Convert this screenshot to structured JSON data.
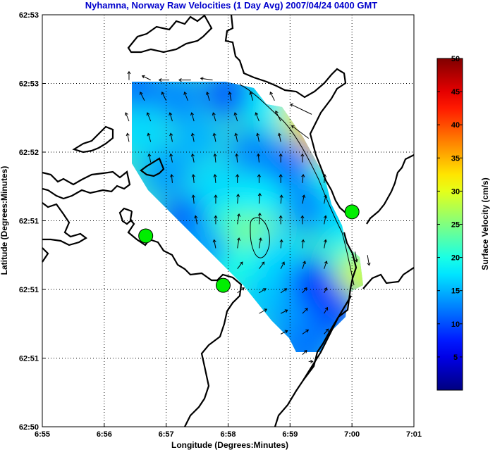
{
  "chart_data": {
    "type": "heatmap",
    "title": "Nyhamna, Norway Raw Velocities (1 Day Avg) 2007/04/24 0400 GMT",
    "xlabel": "Longitude (Degrees:Minutes)",
    "ylabel": "Latitude (Degrees:Minutes)",
    "x_ticks": [
      "6:55",
      "6:56",
      "6:57",
      "6:58",
      "6:59",
      "7:00",
      "7:01"
    ],
    "y_ticks": [
      "62:53",
      "62:53",
      "62:52",
      "62:51",
      "62:51",
      "62:51",
      "62:50"
    ],
    "xlim": [
      0,
      6
    ],
    "ylim": [
      0,
      6
    ],
    "grid": true,
    "colorbar": {
      "label": "Surface Velocity (cm/s)",
      "ticks": [
        5,
        10,
        15,
        20,
        25,
        30,
        35,
        40,
        45,
        50
      ],
      "range": [
        0,
        50
      ],
      "colormap": "jet"
    },
    "stations": [
      {
        "x": 1.67,
        "y": 2.78
      },
      {
        "x": 2.92,
        "y": 2.06
      },
      {
        "x": 5.0,
        "y": 3.13
      }
    ],
    "speed_field": [
      {
        "x": 1.5,
        "y": 4.95,
        "speed": 12
      },
      {
        "x": 2.2,
        "y": 4.8,
        "speed": 13
      },
      {
        "x": 3.0,
        "y": 4.85,
        "speed": 11
      },
      {
        "x": 3.7,
        "y": 4.7,
        "speed": 18
      },
      {
        "x": 4.25,
        "y": 4.55,
        "speed": 32
      },
      {
        "x": 4.45,
        "y": 4.2,
        "speed": 34
      },
      {
        "x": 1.6,
        "y": 4.3,
        "speed": 17
      },
      {
        "x": 2.5,
        "y": 4.2,
        "speed": 15
      },
      {
        "x": 3.4,
        "y": 4.0,
        "speed": 13
      },
      {
        "x": 4.0,
        "y": 3.8,
        "speed": 12
      },
      {
        "x": 4.7,
        "y": 3.6,
        "speed": 20
      },
      {
        "x": 2.0,
        "y": 3.7,
        "speed": 14
      },
      {
        "x": 2.8,
        "y": 3.5,
        "speed": 17
      },
      {
        "x": 3.5,
        "y": 3.3,
        "speed": 18
      },
      {
        "x": 4.3,
        "y": 3.2,
        "speed": 13
      },
      {
        "x": 4.9,
        "y": 3.0,
        "speed": 17
      },
      {
        "x": 2.3,
        "y": 3.0,
        "speed": 11
      },
      {
        "x": 3.0,
        "y": 2.9,
        "speed": 21
      },
      {
        "x": 3.4,
        "y": 2.75,
        "speed": 25
      },
      {
        "x": 3.1,
        "y": 2.35,
        "speed": 20
      },
      {
        "x": 2.6,
        "y": 2.6,
        "speed": 14
      },
      {
        "x": 3.8,
        "y": 2.5,
        "speed": 17
      },
      {
        "x": 4.3,
        "y": 2.1,
        "speed": 11
      },
      {
        "x": 4.55,
        "y": 1.9,
        "speed": 8
      },
      {
        "x": 5.05,
        "y": 2.5,
        "speed": 20
      },
      {
        "x": 5.15,
        "y": 2.2,
        "speed": 29
      },
      {
        "x": 3.6,
        "y": 1.9,
        "speed": 16
      },
      {
        "x": 4.0,
        "y": 1.5,
        "speed": 14
      },
      {
        "x": 4.4,
        "y": 1.3,
        "speed": 13
      },
      {
        "x": 4.7,
        "y": 1.7,
        "speed": 10
      },
      {
        "x": 4.2,
        "y": 1.1,
        "speed": 12
      }
    ],
    "vectors": [
      {
        "x": 1.4,
        "y": 5.05,
        "u": 0,
        "v": 0.1
      },
      {
        "x": 1.75,
        "y": 5.05,
        "u": -0.1,
        "v": 0.05
      },
      {
        "x": 2.05,
        "y": 5.05,
        "u": -0.12,
        "v": 0
      },
      {
        "x": 2.4,
        "y": 5.05,
        "u": -0.14,
        "v": 0
      },
      {
        "x": 2.75,
        "y": 5.05,
        "u": -0.14,
        "v": 0.02
      },
      {
        "x": 1.65,
        "y": 4.75,
        "u": -0.05,
        "v": 0.1
      },
      {
        "x": 2.0,
        "y": 4.75,
        "u": -0.05,
        "v": 0.1
      },
      {
        "x": 2.35,
        "y": 4.75,
        "u": -0.04,
        "v": 0.1
      },
      {
        "x": 2.7,
        "y": 4.75,
        "u": -0.03,
        "v": 0.1
      },
      {
        "x": 3.05,
        "y": 4.75,
        "u": -0.02,
        "v": 0.1
      },
      {
        "x": 3.4,
        "y": 4.75,
        "u": -0.03,
        "v": 0.1
      },
      {
        "x": 3.75,
        "y": 4.75,
        "u": -0.05,
        "v": 0.1
      },
      {
        "x": 4.35,
        "y": 4.55,
        "u": -0.25,
        "v": 0.12
      },
      {
        "x": 1.4,
        "y": 4.45,
        "u": -0.04,
        "v": 0.1
      },
      {
        "x": 1.75,
        "y": 4.45,
        "u": -0.04,
        "v": 0.1
      },
      {
        "x": 2.1,
        "y": 4.45,
        "u": -0.03,
        "v": 0.1
      },
      {
        "x": 2.45,
        "y": 4.45,
        "u": -0.03,
        "v": 0.1
      },
      {
        "x": 2.8,
        "y": 4.45,
        "u": -0.03,
        "v": 0.1
      },
      {
        "x": 3.15,
        "y": 4.45,
        "u": -0.03,
        "v": 0.1
      },
      {
        "x": 3.5,
        "y": 4.45,
        "u": -0.04,
        "v": 0.1
      },
      {
        "x": 3.85,
        "y": 4.45,
        "u": -0.06,
        "v": 0.12
      },
      {
        "x": 4.3,
        "y": 4.2,
        "u": -0.2,
        "v": 0.15
      },
      {
        "x": 1.4,
        "y": 4.15,
        "u": -0.02,
        "v": 0.1
      },
      {
        "x": 1.75,
        "y": 4.15,
        "u": -0.03,
        "v": 0.1
      },
      {
        "x": 2.1,
        "y": 4.15,
        "u": -0.02,
        "v": 0.1
      },
      {
        "x": 2.45,
        "y": 4.15,
        "u": -0.02,
        "v": 0.1
      },
      {
        "x": 2.8,
        "y": 4.15,
        "u": -0.02,
        "v": 0.1
      },
      {
        "x": 3.15,
        "y": 4.15,
        "u": -0.02,
        "v": 0.1
      },
      {
        "x": 3.5,
        "y": 4.15,
        "u": -0.02,
        "v": 0.1
      },
      {
        "x": 3.85,
        "y": 4.15,
        "u": -0.02,
        "v": 0.1
      },
      {
        "x": 1.75,
        "y": 3.85,
        "u": -0.02,
        "v": 0.1
      },
      {
        "x": 2.1,
        "y": 3.85,
        "u": -0.02,
        "v": 0.1
      },
      {
        "x": 2.45,
        "y": 3.85,
        "u": -0.02,
        "v": 0.1
      },
      {
        "x": 2.8,
        "y": 3.85,
        "u": -0.01,
        "v": 0.1
      },
      {
        "x": 3.15,
        "y": 3.85,
        "u": -0.01,
        "v": 0.1
      },
      {
        "x": 3.5,
        "y": 3.85,
        "u": -0.01,
        "v": 0.1
      },
      {
        "x": 3.85,
        "y": 3.85,
        "u": 0,
        "v": 0.1
      },
      {
        "x": 4.2,
        "y": 3.85,
        "u": 0,
        "v": 0.1
      },
      {
        "x": 2.1,
        "y": 3.55,
        "u": -0.01,
        "v": 0.1
      },
      {
        "x": 2.45,
        "y": 3.55,
        "u": -0.01,
        "v": 0.1
      },
      {
        "x": 2.8,
        "y": 3.55,
        "u": -0.01,
        "v": 0.1
      },
      {
        "x": 3.15,
        "y": 3.55,
        "u": 0,
        "v": 0.1
      },
      {
        "x": 3.5,
        "y": 3.55,
        "u": 0,
        "v": 0.1
      },
      {
        "x": 3.85,
        "y": 3.55,
        "u": 0,
        "v": 0.1
      },
      {
        "x": 4.2,
        "y": 3.55,
        "u": 0.01,
        "v": 0.1
      },
      {
        "x": 4.55,
        "y": 3.55,
        "u": 0.01,
        "v": 0.1
      },
      {
        "x": 2.45,
        "y": 3.25,
        "u": -0.01,
        "v": 0.1
      },
      {
        "x": 2.8,
        "y": 3.25,
        "u": 0,
        "v": 0.1
      },
      {
        "x": 3.15,
        "y": 3.25,
        "u": 0.01,
        "v": 0.11
      },
      {
        "x": 3.5,
        "y": 3.25,
        "u": 0.01,
        "v": 0.12
      },
      {
        "x": 3.85,
        "y": 3.25,
        "u": 0.01,
        "v": 0.1
      },
      {
        "x": 4.2,
        "y": 3.25,
        "u": 0.02,
        "v": 0.1
      },
      {
        "x": 4.55,
        "y": 3.25,
        "u": 0.02,
        "v": 0.1
      },
      {
        "x": 2.5,
        "y": 2.95,
        "u": -0.02,
        "v": 0.1
      },
      {
        "x": 2.8,
        "y": 2.95,
        "u": 0,
        "v": 0.1
      },
      {
        "x": 3.15,
        "y": 2.95,
        "u": 0.02,
        "v": 0.12
      },
      {
        "x": 3.5,
        "y": 2.95,
        "u": 0.01,
        "v": 0.13
      },
      {
        "x": 3.85,
        "y": 2.95,
        "u": 0,
        "v": 0.1
      },
      {
        "x": 4.2,
        "y": 2.95,
        "u": 0,
        "v": 0.1
      },
      {
        "x": 4.55,
        "y": 2.95,
        "u": 0.02,
        "v": 0.1
      },
      {
        "x": 2.8,
        "y": 2.6,
        "u": -0.02,
        "v": 0.1
      },
      {
        "x": 3.15,
        "y": 2.6,
        "u": 0.02,
        "v": 0.12
      },
      {
        "x": 3.5,
        "y": 2.6,
        "u": 0.02,
        "v": 0.12
      },
      {
        "x": 3.85,
        "y": 2.6,
        "u": 0.01,
        "v": 0.1
      },
      {
        "x": 4.2,
        "y": 2.6,
        "u": 0.01,
        "v": 0.1
      },
      {
        "x": 4.55,
        "y": 2.6,
        "u": 0.02,
        "v": 0.1
      },
      {
        "x": 5.05,
        "y": 2.55,
        "u": 0.02,
        "v": -0.12
      },
      {
        "x": 5.25,
        "y": 2.5,
        "u": 0.02,
        "v": -0.12
      },
      {
        "x": 3.15,
        "y": 2.3,
        "u": 0.06,
        "v": 0.08
      },
      {
        "x": 3.5,
        "y": 2.3,
        "u": 0.06,
        "v": 0.08
      },
      {
        "x": 3.85,
        "y": 2.3,
        "u": 0.04,
        "v": 0.08
      },
      {
        "x": 4.2,
        "y": 2.3,
        "u": 0.03,
        "v": 0.09
      },
      {
        "x": 4.55,
        "y": 2.3,
        "u": 0.03,
        "v": 0.09
      },
      {
        "x": 3.15,
        "y": 1.95,
        "u": 0.08,
        "v": 0.06
      },
      {
        "x": 3.5,
        "y": 1.95,
        "u": 0.08,
        "v": 0.05
      },
      {
        "x": 3.85,
        "y": 1.95,
        "u": 0.07,
        "v": 0.05
      },
      {
        "x": 4.2,
        "y": 1.95,
        "u": 0.05,
        "v": 0.06
      },
      {
        "x": 4.55,
        "y": 1.95,
        "u": 0.03,
        "v": 0.06
      },
      {
        "x": 3.5,
        "y": 1.65,
        "u": 0.09,
        "v": 0.05
      },
      {
        "x": 3.85,
        "y": 1.65,
        "u": 0.08,
        "v": 0.04
      },
      {
        "x": 4.2,
        "y": 1.65,
        "u": 0.06,
        "v": 0.06
      },
      {
        "x": 4.55,
        "y": 1.65,
        "u": 0.04,
        "v": 0.07
      },
      {
        "x": 3.85,
        "y": 1.35,
        "u": 0.08,
        "v": 0.04
      },
      {
        "x": 4.2,
        "y": 1.35,
        "u": 0.07,
        "v": 0.05
      },
      {
        "x": 4.55,
        "y": 1.35,
        "u": 0.05,
        "v": 0.06
      },
      {
        "x": 4.2,
        "y": 1.05,
        "u": 0.05,
        "v": 0.05
      },
      {
        "x": 4.3,
        "y": 0.95,
        "u": 0.05,
        "v": 0
      }
    ]
  }
}
